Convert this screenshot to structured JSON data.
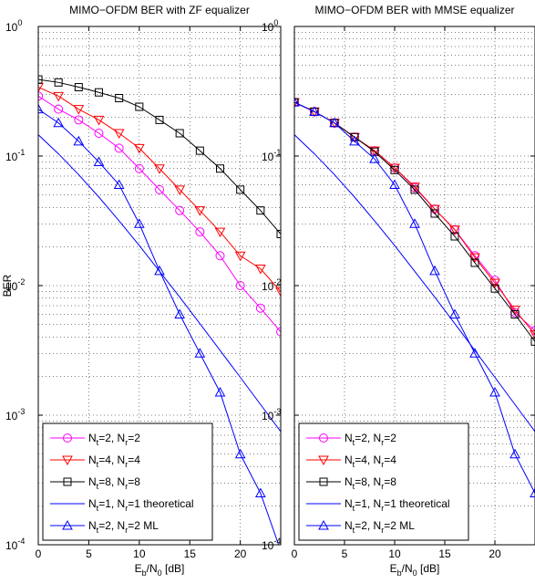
{
  "chart_data": [
    {
      "type": "line",
      "title": "MIMO−OFDM BER with ZF equalizer",
      "xlabel": "E_b/N_0 [dB]",
      "ylabel": "BER",
      "ylabel_parts": {
        "text": "BER"
      },
      "xlabel_parts": {
        "base": "E",
        "sub": "b",
        "mid": "/N",
        "sub2": "0",
        "tail": " [dB]"
      },
      "xlim": [
        0,
        24
      ],
      "ylim": [
        0.0001,
        1
      ],
      "y_scale": "log",
      "grid": true,
      "legend_position": "bottom-left",
      "x_ticks": [
        0,
        5,
        10,
        15,
        20
      ],
      "x_tick_labels": [
        "0",
        "5",
        "10",
        "15",
        "20"
      ],
      "y_ticks": [
        {
          "value": 1,
          "base": "10",
          "exp": "0"
        },
        {
          "value": 0.1,
          "base": "10",
          "exp": "-1"
        },
        {
          "value": 0.01,
          "base": "10",
          "exp": "-2"
        },
        {
          "value": 0.001,
          "base": "10",
          "exp": "-3"
        },
        {
          "value": 0.0001,
          "base": "10",
          "exp": "-4"
        }
      ],
      "series": [
        {
          "name": "N_t=2, N_r=2",
          "legend": {
            "a": "N",
            "as": "t",
            "b": "=2, N",
            "bs": "r",
            "c": "=2"
          },
          "color": "#ff00ff",
          "marker": "circle",
          "x": [
            0,
            2,
            4,
            6,
            8,
            10,
            12,
            14,
            16,
            18,
            20,
            22,
            24
          ],
          "y": [
            0.29,
            0.23,
            0.19,
            0.15,
            0.115,
            0.08,
            0.055,
            0.038,
            0.026,
            0.017,
            0.01,
            0.0067,
            0.0044
          ]
        },
        {
          "name": "N_t=4, N_r=4",
          "legend": {
            "a": "N",
            "as": "t",
            "b": "=4, N",
            "bs": "r",
            "c": "=4"
          },
          "color": "#ff0000",
          "marker": "triangle-down",
          "x": [
            0,
            2,
            4,
            6,
            8,
            10,
            12,
            14,
            16,
            18,
            20,
            22,
            24
          ],
          "y": [
            0.34,
            0.29,
            0.23,
            0.19,
            0.15,
            0.115,
            0.08,
            0.055,
            0.038,
            0.026,
            0.017,
            0.0135,
            0.009
          ]
        },
        {
          "name": "N_t=8, N_r=8",
          "legend": {
            "a": "N",
            "as": "t",
            "b": "=8, N",
            "bs": "r",
            "c": "=8"
          },
          "color": "#000000",
          "marker": "square",
          "x": [
            0,
            2,
            4,
            6,
            8,
            10,
            12,
            14,
            16,
            18,
            20,
            22,
            24
          ],
          "y": [
            0.39,
            0.37,
            0.34,
            0.31,
            0.28,
            0.24,
            0.19,
            0.15,
            0.11,
            0.08,
            0.055,
            0.038,
            0.025
          ]
        },
        {
          "name": "N_t=1, N_r=1 theoretical",
          "legend": {
            "a": "N",
            "as": "t",
            "b": "=1, N",
            "bs": "r",
            "c": "=1 theoretical"
          },
          "color": "#0000ff",
          "marker": "none",
          "x": [
            0,
            2,
            4,
            6,
            8,
            10,
            12,
            14,
            16,
            18,
            20,
            22,
            24
          ],
          "y": [
            0.146,
            0.104,
            0.0718,
            0.0482,
            0.0316,
            0.0204,
            0.0129,
            0.00815,
            0.00509,
            0.00316,
            0.00196,
            0.00121,
            0.000748
          ]
        },
        {
          "name": "N_t=2, N_r=2 ML",
          "legend": {
            "a": "N",
            "as": "t",
            "b": "=2, N",
            "bs": "r",
            "c": "=2 ML"
          },
          "color": "#0000ff",
          "marker": "triangle-up",
          "x": [
            0,
            2,
            4,
            6,
            8,
            10,
            12,
            14,
            16,
            18,
            20,
            22,
            24
          ],
          "y": [
            0.23,
            0.18,
            0.13,
            0.09,
            0.06,
            0.03,
            0.013,
            0.006,
            0.003,
            0.0015,
            0.0005,
            0.00025,
            9e-05
          ]
        }
      ]
    },
    {
      "type": "line",
      "title": "MIMO−OFDM BER with MMSE equalizer",
      "xlabel": "E_b/N_0 [dB]",
      "ylabel": "",
      "xlabel_parts": {
        "base": "E",
        "sub": "b",
        "mid": "/N",
        "sub2": "0",
        "tail": " [dB]"
      },
      "xlim": [
        0,
        24
      ],
      "ylim": [
        0.0001,
        1
      ],
      "y_scale": "log",
      "grid": true,
      "legend_position": "bottom-left",
      "x_ticks": [
        0,
        5,
        10,
        15,
        20
      ],
      "x_tick_labels": [
        "0",
        "5",
        "10",
        "15",
        "20"
      ],
      "y_ticks": [
        {
          "value": 1,
          "base": "10",
          "exp": "0"
        },
        {
          "value": 0.1,
          "base": "10",
          "exp": "-1"
        },
        {
          "value": 0.01,
          "base": "10",
          "exp": "-2"
        },
        {
          "value": 0.001,
          "base": "10",
          "exp": "-3"
        },
        {
          "value": 0.0001,
          "base": "10",
          "exp": "-4"
        }
      ],
      "series": [
        {
          "name": "N_t=2, N_r=2",
          "legend": {
            "a": "N",
            "as": "t",
            "b": "=2, N",
            "bs": "r",
            "c": "=2"
          },
          "color": "#ff00ff",
          "marker": "circle",
          "x": [
            0,
            2,
            4,
            6,
            8,
            10,
            12,
            14,
            16,
            18,
            20,
            22,
            24
          ],
          "y": [
            0.26,
            0.22,
            0.18,
            0.14,
            0.11,
            0.081,
            0.057,
            0.039,
            0.027,
            0.017,
            0.011,
            0.0062,
            0.0045
          ]
        },
        {
          "name": "N_t=4, N_r=4",
          "legend": {
            "a": "N",
            "as": "t",
            "b": "=4, N",
            "bs": "r",
            "c": "=4"
          },
          "color": "#ff0000",
          "marker": "triangle-down",
          "x": [
            0,
            2,
            4,
            6,
            8,
            10,
            12,
            14,
            16,
            18,
            20,
            22,
            24
          ],
          "y": [
            0.26,
            0.22,
            0.18,
            0.14,
            0.11,
            0.081,
            0.058,
            0.039,
            0.027,
            0.0165,
            0.0105,
            0.0065,
            0.0042
          ]
        },
        {
          "name": "N_t=8, N_r=8",
          "legend": {
            "a": "N",
            "as": "t",
            "b": "=8, N",
            "bs": "r",
            "c": "=8"
          },
          "color": "#000000",
          "marker": "square",
          "x": [
            0,
            2,
            4,
            6,
            8,
            10,
            12,
            14,
            16,
            18,
            20,
            22,
            24
          ],
          "y": [
            0.26,
            0.22,
            0.18,
            0.14,
            0.108,
            0.078,
            0.055,
            0.036,
            0.024,
            0.015,
            0.0095,
            0.006,
            0.0037
          ]
        },
        {
          "name": "N_t=1, N_r=1 theoretical",
          "legend": {
            "a": "N",
            "as": "t",
            "b": "=1, N",
            "bs": "r",
            "c": "=1 theoretical"
          },
          "color": "#0000ff",
          "marker": "none",
          "x": [
            0,
            2,
            4,
            6,
            8,
            10,
            12,
            14,
            16,
            18,
            20,
            22,
            24
          ],
          "y": [
            0.146,
            0.104,
            0.0718,
            0.0482,
            0.0316,
            0.0204,
            0.0129,
            0.00815,
            0.00509,
            0.00316,
            0.00196,
            0.00121,
            0.000748
          ]
        },
        {
          "name": "N_t=2, N_r=2 ML",
          "legend": {
            "a": "N",
            "as": "t",
            "b": "=2, N",
            "bs": "r",
            "c": "=2 ML"
          },
          "color": "#0000ff",
          "marker": "triangle-up",
          "x": [
            0,
            2,
            4,
            6,
            8,
            10,
            12,
            14,
            16,
            18,
            20,
            22,
            24
          ],
          "y": [
            0.26,
            0.22,
            0.18,
            0.13,
            0.095,
            0.06,
            0.03,
            0.013,
            0.006,
            0.003,
            0.0015,
            0.0005,
            0.00025
          ]
        }
      ]
    }
  ]
}
